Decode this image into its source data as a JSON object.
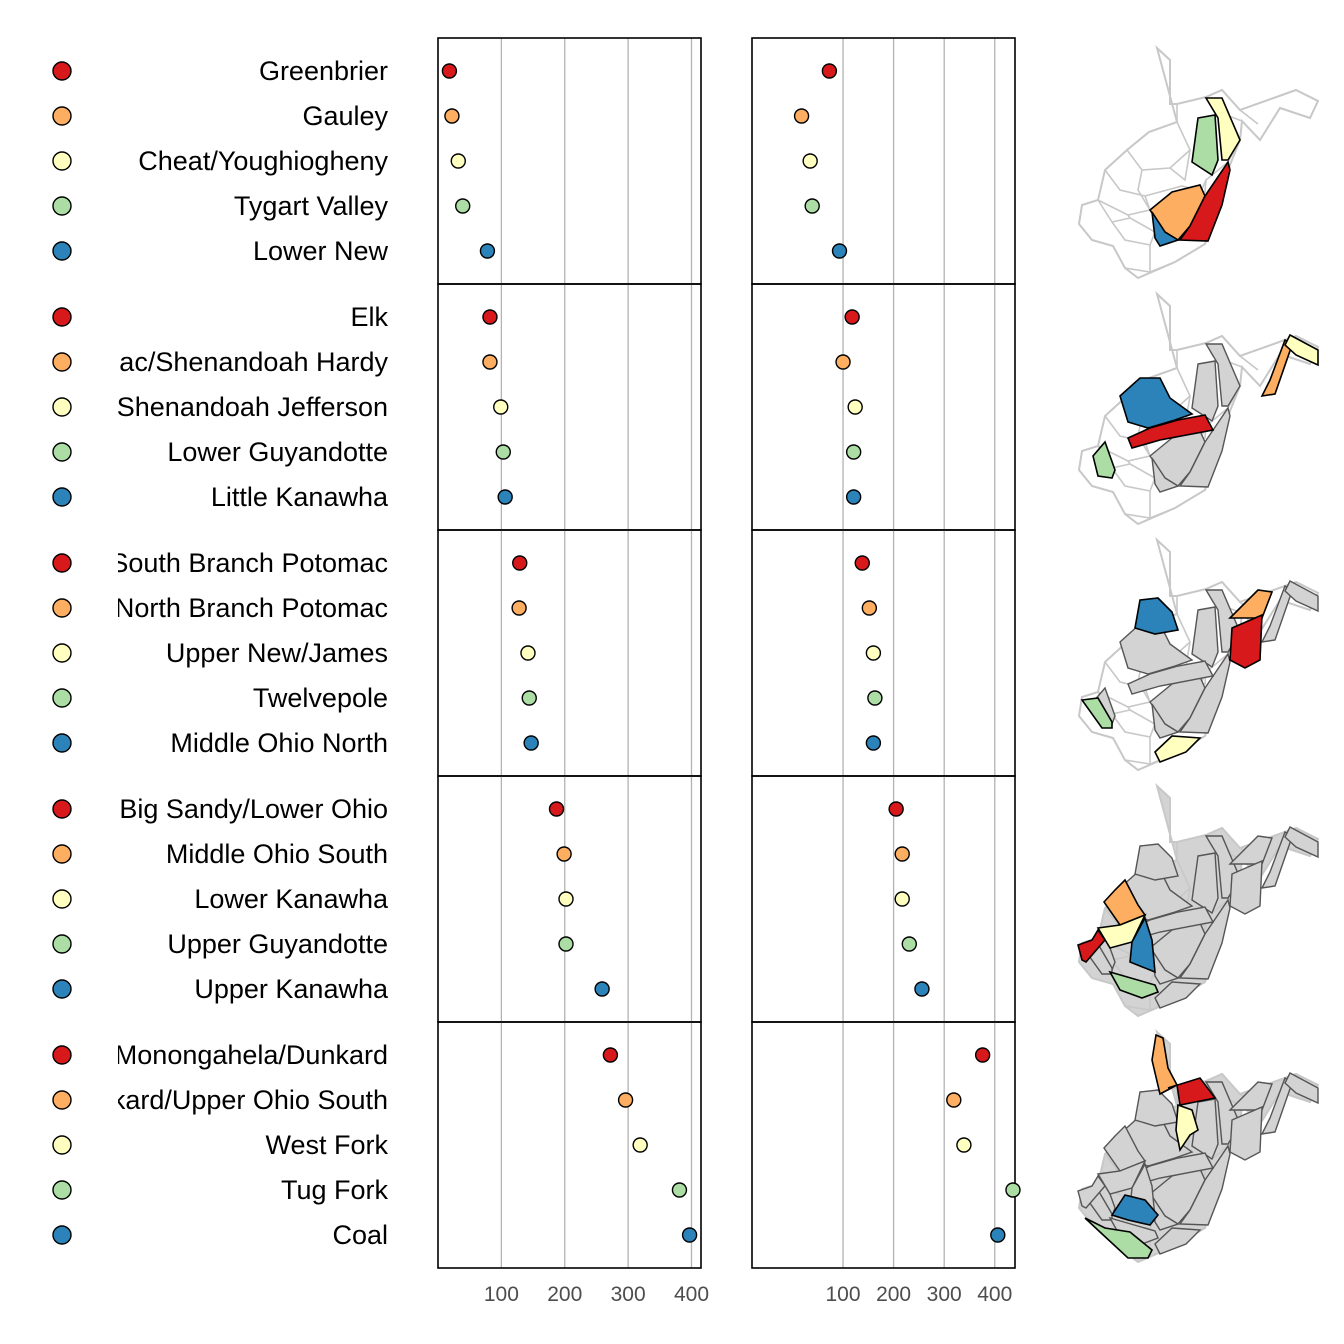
{
  "chart_data": {
    "type": "scatter",
    "subtype": "linked micromap dot plot",
    "title": "",
    "xlabel": "",
    "ylabel": "",
    "grid": true,
    "legend": "none",
    "colors": [
      "#d7191c",
      "#fdae61",
      "#ffffbf",
      "#abdda4",
      "#2b83ba"
    ],
    "groups": [
      {
        "rows": [
          {
            "name": "Greenbrier",
            "left": 18,
            "right": 73
          },
          {
            "name": "Gauley",
            "left": 22,
            "right": 18
          },
          {
            "name": "Cheat/Youghiogheny",
            "left": 32,
            "right": 35
          },
          {
            "name": "Tygart Valley",
            "left": 39,
            "right": 39
          },
          {
            "name": "Lower New",
            "left": 78,
            "right": 93
          }
        ]
      },
      {
        "rows": [
          {
            "name": "Elk",
            "left": 82,
            "right": 118
          },
          {
            "name": "South Branch Potomac/Shenandoah Hardy",
            "left": 82,
            "right": 100
          },
          {
            "name": "Potomac/Shenandoah Jefferson",
            "left": 99,
            "right": 124
          },
          {
            "name": "Lower Guyandotte",
            "left": 103,
            "right": 121
          },
          {
            "name": "Little Kanawha",
            "left": 106,
            "right": 121
          }
        ]
      },
      {
        "rows": [
          {
            "name": "South Branch Potomac",
            "left": 129,
            "right": 138
          },
          {
            "name": "North Branch Potomac",
            "left": 128,
            "right": 152
          },
          {
            "name": "Upper New/James",
            "left": 142,
            "right": 160
          },
          {
            "name": "Twelvepole",
            "left": 144,
            "right": 163
          },
          {
            "name": "Middle Ohio North",
            "left": 147,
            "right": 160
          }
        ]
      },
      {
        "rows": [
          {
            "name": "Big Sandy/Lower Ohio",
            "left": 187,
            "right": 205
          },
          {
            "name": "Middle Ohio South",
            "left": 199,
            "right": 217
          },
          {
            "name": "Lower Kanawha",
            "left": 202,
            "right": 217
          },
          {
            "name": "Upper Guyandotte",
            "left": 202,
            "right": 231
          },
          {
            "name": "Upper Kanawha",
            "left": 259,
            "right": 256
          }
        ]
      },
      {
        "rows": [
          {
            "name": "Monongahela/Dunkard",
            "left": 272,
            "right": 376
          },
          {
            "name": "Dunkard/Upper Ohio South",
            "left": 296,
            "right": 319
          },
          {
            "name": "West Fork",
            "left": 319,
            "right": 339
          },
          {
            "name": "Tug Fork",
            "left": 381,
            "right": 436
          },
          {
            "name": "Coal",
            "left": 397,
            "right": 406
          }
        ]
      }
    ],
    "panels": [
      {
        "xlim": [
          0,
          415
        ],
        "ticks": [
          100,
          200,
          300,
          400
        ]
      },
      {
        "xlim": [
          -80,
          440
        ],
        "ticks": [
          100,
          200,
          300,
          400
        ]
      }
    ]
  }
}
